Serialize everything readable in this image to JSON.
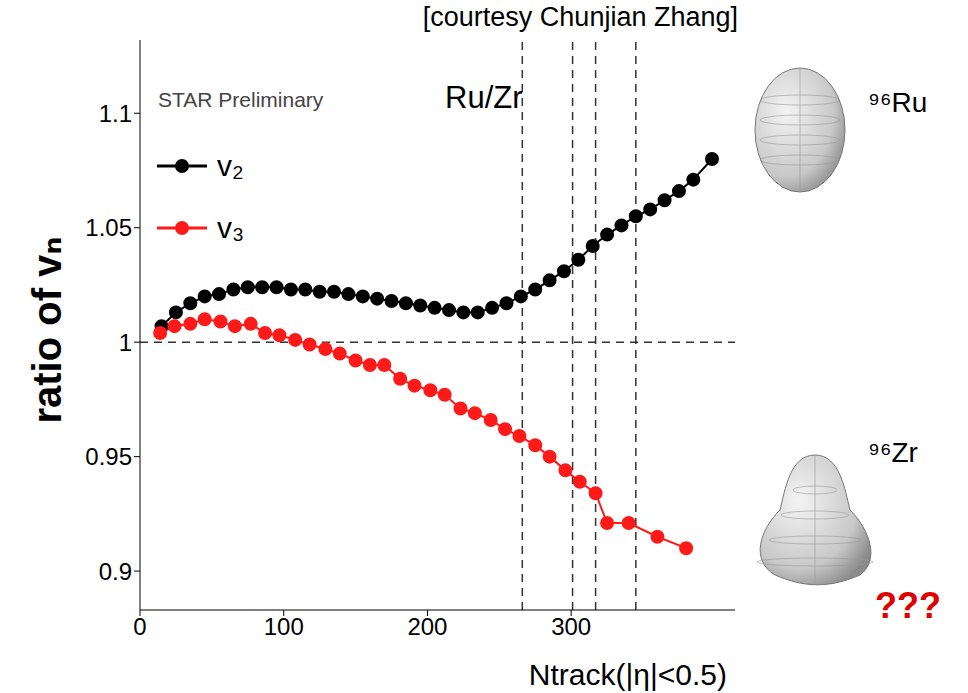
{
  "chart_data": {
    "type": "line",
    "title": "Ru/Zr",
    "subtitle": "[courtesy Chunjian Zhang]",
    "x_label": "Ntrack(|η|<0.5)",
    "y_label": "ratio of vₙ",
    "annotations": [
      "STAR Preliminary",
      "⁹⁶Ru",
      "⁹⁶Zr",
      "???"
    ],
    "xlim": [
      0,
      414
    ],
    "xticks": [
      0,
      100,
      200,
      300
    ],
    "ylim": [
      0.883,
      1.132
    ],
    "yticks": [
      0.9,
      0.95,
      1,
      1.05,
      1.1
    ],
    "legend": "upper left",
    "marker": "circle",
    "line_style": "solid",
    "reference_lines": {
      "x": [
        266,
        301,
        317,
        345
      ],
      "y": [
        1
      ]
    },
    "series": [
      {
        "name": "v₂",
        "color": "#000000",
        "x": [
          15,
          25,
          35,
          45,
          55,
          65,
          75,
          85,
          95,
          105,
          115,
          125,
          135,
          145,
          155,
          165,
          175,
          185,
          195,
          205,
          215,
          225,
          235,
          245,
          255,
          265,
          275,
          285,
          295,
          305,
          315,
          325,
          335,
          345,
          355,
          365,
          375,
          385,
          398
        ],
        "values": [
          1.007,
          1.013,
          1.017,
          1.02,
          1.021,
          1.023,
          1.024,
          1.024,
          1.024,
          1.023,
          1.023,
          1.022,
          1.022,
          1.021,
          1.02,
          1.019,
          1.018,
          1.017,
          1.016,
          1.015,
          1.014,
          1.013,
          1.013,
          1.015,
          1.017,
          1.02,
          1.023,
          1.027,
          1.031,
          1.036,
          1.042,
          1.047,
          1.051,
          1.055,
          1.058,
          1.062,
          1.066,
          1.071,
          1.08
        ]
      },
      {
        "name": "v₃",
        "color": "#ff1a1a",
        "x": [
          14,
          24,
          35,
          45,
          56,
          66,
          77,
          87,
          97,
          108,
          118,
          129,
          139,
          150,
          160,
          170,
          181,
          191,
          202,
          212,
          223,
          233,
          244,
          254,
          264,
          275,
          285,
          296,
          306,
          317,
          325,
          340,
          360,
          380
        ],
        "values": [
          1.004,
          1.007,
          1.008,
          1.01,
          1.009,
          1.007,
          1.008,
          1.004,
          1.003,
          1.001,
          0.999,
          0.997,
          0.995,
          0.992,
          0.99,
          0.99,
          0.984,
          0.981,
          0.979,
          0.977,
          0.971,
          0.969,
          0.966,
          0.962,
          0.959,
          0.955,
          0.95,
          0.944,
          0.939,
          0.934,
          0.921,
          0.921,
          0.915,
          0.91
        ]
      }
    ]
  }
}
